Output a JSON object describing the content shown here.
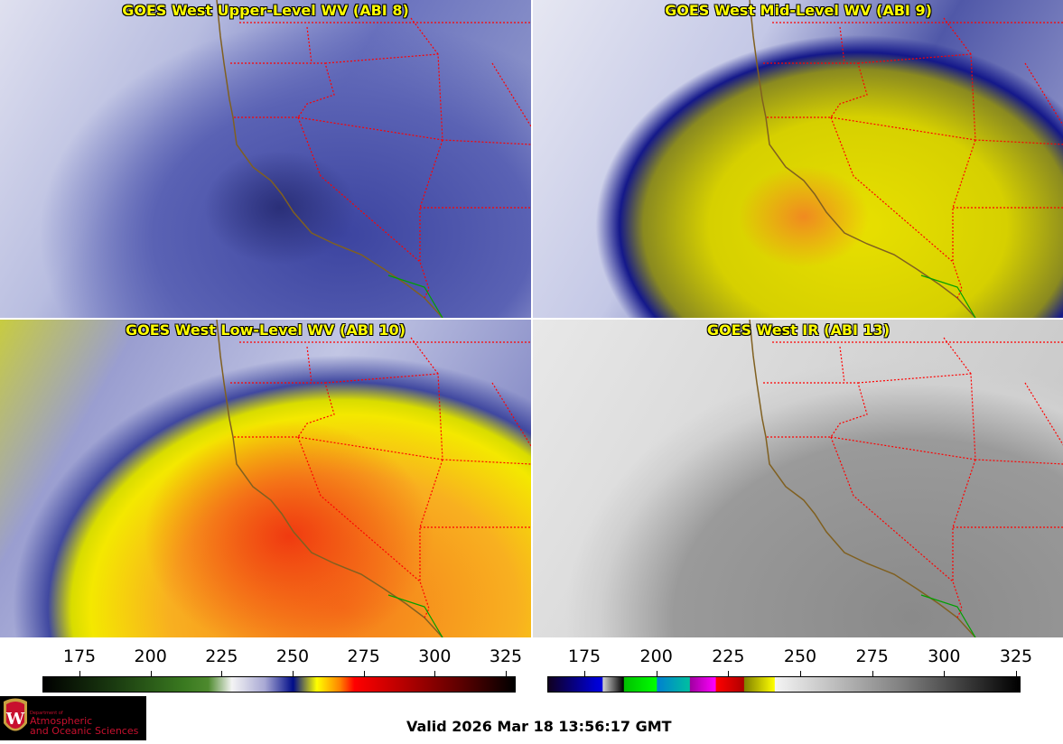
{
  "panels": [
    {
      "title": "GOES West Upper-Level WV (ABI 8)"
    },
    {
      "title": "GOES West Mid-Level WV (ABI 9)"
    },
    {
      "title": "GOES West Low-Level WV (ABI 10)"
    },
    {
      "title": "GOES West IR (ABI 13)"
    }
  ],
  "colorbars": [
    {
      "name": "water-vapor",
      "ticks": [
        "175",
        "200",
        "225",
        "250",
        "275",
        "300",
        "325"
      ],
      "unit": "K"
    },
    {
      "name": "infrared",
      "ticks": [
        "175",
        "200",
        "225",
        "250",
        "275",
        "300",
        "325"
      ],
      "unit": "K"
    }
  ],
  "logo": {
    "line1": "Department of",
    "line2": "Atmospheric",
    "line3": "and Oceanic Sciences",
    "emblem": "W"
  },
  "valid_time": "Valid 2026 Mar 18 13:56:17 GMT",
  "colors": {
    "title": "#ffff00",
    "state_border": "#ff0000",
    "coast": "#806020",
    "logo_text": "#c8102e"
  }
}
